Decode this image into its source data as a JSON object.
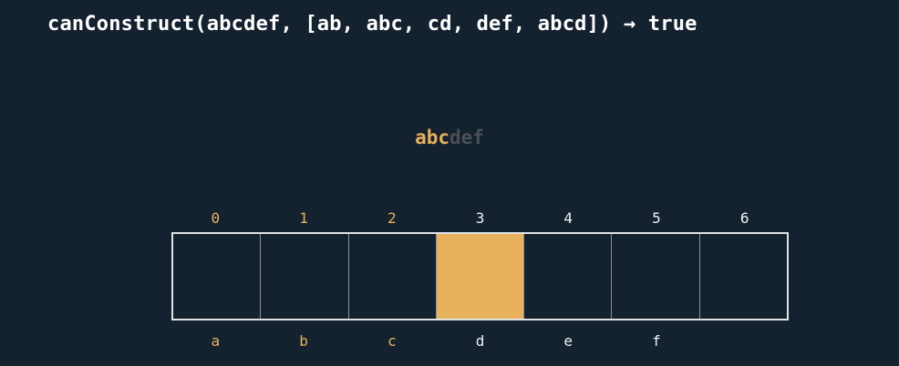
{
  "title": "canConstruct(abcdef, [ab, abc, cd, def, abcd]) → true",
  "progress": {
    "matched": "abc",
    "remaining": "def"
  },
  "indices": [
    "0",
    "1",
    "2",
    "3",
    "4",
    "5",
    "6"
  ],
  "letters": [
    "a",
    "b",
    "c",
    "d",
    "e",
    "f",
    ""
  ],
  "current_index": 3,
  "colors": {
    "background": "#14222f",
    "highlight": "#e8b15c",
    "dim_text": "#4a4f55",
    "text": "#ffffff"
  }
}
